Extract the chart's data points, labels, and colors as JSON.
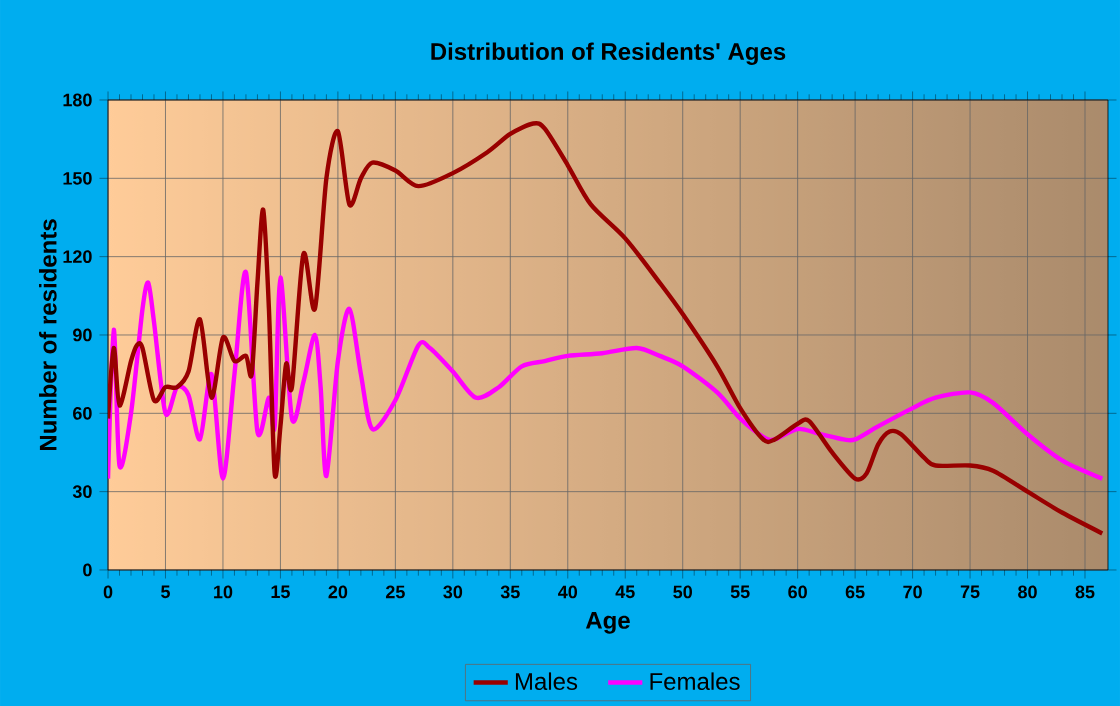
{
  "chart_data": {
    "type": "line",
    "title": "Distribution of Residents' Ages",
    "xlabel": "Age",
    "ylabel": "Number of residents",
    "xlim": [
      0,
      87
    ],
    "xticks": [
      0,
      5,
      10,
      15,
      20,
      25,
      30,
      35,
      40,
      45,
      50,
      55,
      60,
      65,
      70,
      75,
      80,
      85
    ],
    "ylim": [
      0,
      180
    ],
    "yticks": [
      0,
      30,
      60,
      90,
      120,
      150,
      180
    ],
    "grid": true,
    "legend": "bottom",
    "series": [
      {
        "name": "Males",
        "color": "#990000",
        "x": [
          0,
          0.5,
          1,
          2,
          2.5,
          3,
          4,
          5,
          6,
          7,
          8,
          9,
          10,
          11,
          12,
          12.5,
          13,
          13.5,
          14,
          14.5,
          15,
          15.5,
          16,
          17,
          18,
          19,
          20,
          21,
          22,
          23,
          25,
          27,
          30,
          33,
          35,
          37,
          38,
          40,
          42,
          45,
          48,
          50,
          53,
          55,
          57,
          58,
          60,
          61,
          63,
          65,
          66,
          67,
          68,
          69,
          71,
          72,
          75,
          77,
          80,
          83,
          86.5
        ],
        "values": [
          58,
          85,
          63,
          80,
          86,
          85,
          65,
          70,
          70,
          76,
          96,
          66,
          89,
          80,
          82,
          75,
          110,
          138,
          100,
          37,
          55,
          79,
          70,
          121,
          100,
          150,
          168,
          140,
          150,
          156,
          153,
          147,
          152,
          160,
          167,
          171,
          169,
          155,
          140,
          127,
          110,
          98,
          78,
          62,
          50,
          50,
          56,
          57,
          45,
          35,
          37,
          48,
          53,
          52,
          43,
          40,
          40,
          38,
          30,
          22,
          14
        ]
      },
      {
        "name": "Females",
        "color": "#ff00ff",
        "x": [
          0,
          0.5,
          1,
          2,
          3,
          3.5,
          4,
          5,
          6,
          7,
          8,
          9,
          10,
          11,
          12,
          13,
          14,
          14.5,
          15,
          16,
          17,
          18,
          18.5,
          19,
          20,
          21,
          22,
          23,
          25,
          27,
          28,
          30,
          32,
          34,
          36,
          38,
          40,
          43,
          46,
          48,
          50,
          53,
          55,
          57,
          58,
          60,
          62,
          64,
          65,
          67,
          70,
          72,
          75,
          77,
          80,
          83,
          86.5
        ],
        "values": [
          35,
          92,
          40,
          60,
          100,
          110,
          95,
          60,
          70,
          67,
          50,
          75,
          35,
          75,
          114,
          53,
          66,
          55,
          112,
          58,
          72,
          90,
          70,
          36,
          80,
          100,
          75,
          54,
          65,
          86,
          85,
          76,
          66,
          70,
          78,
          80,
          82,
          83,
          85,
          82,
          78,
          68,
          58,
          51,
          50,
          54,
          52,
          50,
          50,
          55,
          62,
          66,
          68,
          64,
          52,
          42,
          35
        ]
      }
    ]
  }
}
